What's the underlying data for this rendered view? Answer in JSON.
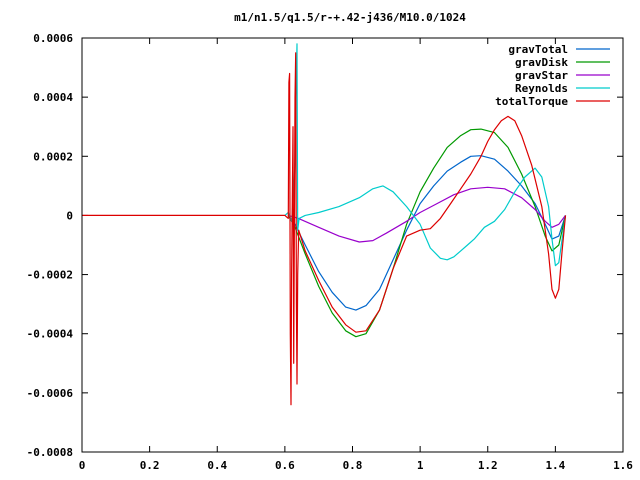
{
  "chart_data": {
    "type": "line",
    "title": "m1/n1.5/q1.5/r-+.42-j436/M10.0/1024",
    "xlabel": "",
    "ylabel": "",
    "xlim": [
      0,
      1.6
    ],
    "ylim": [
      -0.0008,
      0.0006
    ],
    "x_ticks": [
      0,
      0.2,
      0.4,
      0.6,
      0.8,
      1,
      1.2,
      1.4,
      1.6
    ],
    "x_tick_labels": [
      "0",
      "0.2",
      "0.4",
      "0.6",
      "0.8",
      "1",
      "1.2",
      "1.4",
      "1.6"
    ],
    "y_ticks": [
      0.0006,
      0.0004,
      0.0002,
      0,
      -0.0002,
      -0.0004,
      -0.0006,
      -0.0008
    ],
    "y_tick_labels": [
      "0.0006",
      "0.0004",
      "0.0002",
      "0",
      "-0.0002",
      "-0.0004",
      "-0.0006",
      "-0.0008"
    ],
    "grid": false,
    "legend_position": "top-right",
    "series": [
      {
        "name": "gravTotal",
        "color": "#0066cc",
        "points": [
          [
            0.61,
            0
          ],
          [
            0.63,
            -3e-05
          ],
          [
            0.66,
            -0.0001
          ],
          [
            0.7,
            -0.00019
          ],
          [
            0.74,
            -0.00026
          ],
          [
            0.78,
            -0.00031
          ],
          [
            0.81,
            -0.00032
          ],
          [
            0.84,
            -0.000305
          ],
          [
            0.88,
            -0.00025
          ],
          [
            0.92,
            -0.00015
          ],
          [
            0.96,
            -5e-05
          ],
          [
            1.0,
            4e-05
          ],
          [
            1.04,
            0.0001
          ],
          [
            1.08,
            0.00015
          ],
          [
            1.12,
            0.00018
          ],
          [
            1.15,
            0.0002
          ],
          [
            1.18,
            0.000202
          ],
          [
            1.22,
            0.00019
          ],
          [
            1.26,
            0.00015
          ],
          [
            1.3,
            0.0001
          ],
          [
            1.34,
            4e-05
          ],
          [
            1.37,
            -3e-05
          ],
          [
            1.39,
            -8e-05
          ],
          [
            1.41,
            -7e-05
          ],
          [
            1.43,
            0
          ]
        ]
      },
      {
        "name": "gravDisk",
        "color": "#009900",
        "points": [
          [
            0.61,
            0
          ],
          [
            0.63,
            -4e-05
          ],
          [
            0.66,
            -0.00013
          ],
          [
            0.7,
            -0.00024
          ],
          [
            0.74,
            -0.00033
          ],
          [
            0.78,
            -0.00039
          ],
          [
            0.81,
            -0.00041
          ],
          [
            0.84,
            -0.0004
          ],
          [
            0.88,
            -0.00032
          ],
          [
            0.92,
            -0.00018
          ],
          [
            0.96,
            -3e-05
          ],
          [
            1.0,
            8e-05
          ],
          [
            1.04,
            0.00016
          ],
          [
            1.08,
            0.00023
          ],
          [
            1.12,
            0.00027
          ],
          [
            1.15,
            0.00029
          ],
          [
            1.18,
            0.000292
          ],
          [
            1.22,
            0.00028
          ],
          [
            1.26,
            0.00023
          ],
          [
            1.3,
            0.00014
          ],
          [
            1.34,
            3e-05
          ],
          [
            1.37,
            -7e-05
          ],
          [
            1.39,
            -0.00012
          ],
          [
            1.41,
            -0.0001
          ],
          [
            1.43,
            0
          ]
        ]
      },
      {
        "name": "gravStar",
        "color": "#9900cc",
        "points": [
          [
            0.61,
            0
          ],
          [
            0.64,
            -1e-05
          ],
          [
            0.7,
            -4e-05
          ],
          [
            0.76,
            -7e-05
          ],
          [
            0.82,
            -9e-05
          ],
          [
            0.86,
            -8.5e-05
          ],
          [
            0.9,
            -6e-05
          ],
          [
            0.96,
            -2e-05
          ],
          [
            1.0,
            1e-05
          ],
          [
            1.05,
            4e-05
          ],
          [
            1.1,
            7e-05
          ],
          [
            1.15,
            9e-05
          ],
          [
            1.2,
            9.5e-05
          ],
          [
            1.25,
            9e-05
          ],
          [
            1.3,
            6e-05
          ],
          [
            1.34,
            2e-05
          ],
          [
            1.37,
            -2e-05
          ],
          [
            1.39,
            -4e-05
          ],
          [
            1.41,
            -3e-05
          ],
          [
            1.43,
            0
          ]
        ]
      },
      {
        "name": "Reynolds",
        "color": "#00cccc",
        "points": [
          [
            0.6,
            0
          ],
          [
            0.61,
            1e-05
          ],
          [
            0.62,
            -2e-05
          ],
          [
            0.625,
            6e-05
          ],
          [
            0.63,
            0.00018
          ],
          [
            0.633,
            0.00042
          ],
          [
            0.636,
            0.00058
          ],
          [
            0.638,
            -5e-05
          ],
          [
            0.642,
            -1e-05
          ],
          [
            0.66,
            0
          ],
          [
            0.7,
            1e-05
          ],
          [
            0.76,
            3e-05
          ],
          [
            0.82,
            6e-05
          ],
          [
            0.86,
            9e-05
          ],
          [
            0.89,
            0.0001
          ],
          [
            0.92,
            8e-05
          ],
          [
            0.96,
            3e-05
          ],
          [
            1.0,
            -3e-05
          ],
          [
            1.03,
            -0.00011
          ],
          [
            1.06,
            -0.000145
          ],
          [
            1.08,
            -0.00015
          ],
          [
            1.1,
            -0.00014
          ],
          [
            1.12,
            -0.00012
          ],
          [
            1.14,
            -0.0001
          ],
          [
            1.16,
            -8e-05
          ],
          [
            1.19,
            -4e-05
          ],
          [
            1.22,
            -2e-05
          ],
          [
            1.25,
            2e-05
          ],
          [
            1.28,
            8e-05
          ],
          [
            1.31,
            0.00013
          ],
          [
            1.34,
            0.00016
          ],
          [
            1.36,
            0.00013
          ],
          [
            1.38,
            3e-05
          ],
          [
            1.39,
            -8e-05
          ],
          [
            1.4,
            -0.00017
          ],
          [
            1.41,
            -0.00016
          ],
          [
            1.43,
            0
          ]
        ]
      },
      {
        "name": "totalTorque",
        "color": "#dd0000",
        "points": [
          [
            0,
            0
          ],
          [
            0.6,
            0
          ],
          [
            0.61,
            -1e-05
          ],
          [
            0.612,
            0.00045
          ],
          [
            0.614,
            0.00048
          ],
          [
            0.616,
            -0.0004
          ],
          [
            0.618,
            -0.00064
          ],
          [
            0.62,
            -0.0002
          ],
          [
            0.624,
            0.0003
          ],
          [
            0.626,
            -0.0005
          ],
          [
            0.63,
            0.0004
          ],
          [
            0.632,
            0.00055
          ],
          [
            0.634,
            -0.0003
          ],
          [
            0.636,
            -0.00057
          ],
          [
            0.638,
            -0.0002
          ],
          [
            0.641,
            -5e-05
          ],
          [
            0.66,
            -0.00012
          ],
          [
            0.7,
            -0.00022
          ],
          [
            0.74,
            -0.00031
          ],
          [
            0.78,
            -0.00037
          ],
          [
            0.81,
            -0.000395
          ],
          [
            0.84,
            -0.00039
          ],
          [
            0.88,
            -0.00032
          ],
          [
            0.92,
            -0.00018
          ],
          [
            0.96,
            -7e-05
          ],
          [
            1.0,
            -5e-05
          ],
          [
            1.03,
            -4.5e-05
          ],
          [
            1.06,
            -1e-05
          ],
          [
            1.09,
            4e-05
          ],
          [
            1.12,
            9e-05
          ],
          [
            1.15,
            0.00014
          ],
          [
            1.18,
            0.0002
          ],
          [
            1.2,
            0.00025
          ],
          [
            1.22,
            0.00029
          ],
          [
            1.24,
            0.00032
          ],
          [
            1.26,
            0.000335
          ],
          [
            1.28,
            0.00032
          ],
          [
            1.3,
            0.00027
          ],
          [
            1.33,
            0.00017
          ],
          [
            1.36,
            3e-05
          ],
          [
            1.38,
            -0.00013
          ],
          [
            1.39,
            -0.00025
          ],
          [
            1.4,
            -0.00028
          ],
          [
            1.41,
            -0.00025
          ],
          [
            1.42,
            -0.00012
          ],
          [
            1.43,
            0
          ]
        ]
      }
    ]
  }
}
